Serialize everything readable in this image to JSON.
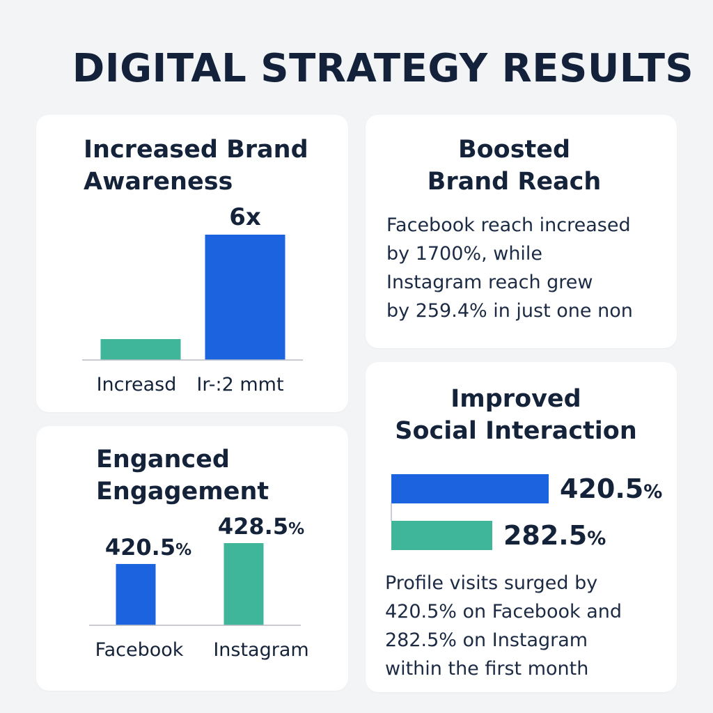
{
  "page": {
    "title": "DIGITAL STRATEGY RESULTS"
  },
  "colors": {
    "blue": "#1b63df",
    "teal": "#3fb69a",
    "axis": "#b8bcc4",
    "text": "#15233a"
  },
  "cards": {
    "awareness": {
      "title_lines": [
        "Increased Brand",
        "Awareness"
      ]
    },
    "reach": {
      "title_lines": [
        "Boosted",
        "Brand Reach"
      ],
      "body_lines": [
        "Facebook reach increased",
        "by 1700%, while",
        "Instagram reach grew",
        "by 259.4% in just one non"
      ]
    },
    "engagement": {
      "title_lines": [
        "Enganced",
        "Engagement"
      ]
    },
    "social": {
      "title_lines": [
        "Improved",
        "Social Interaction"
      ],
      "body_lines": [
        "Profile visits surged by",
        "420.5% on Facebook  and",
        "282.5% on Instagram",
        "within the first month"
      ]
    }
  },
  "chart_data": [
    {
      "id": "awareness",
      "type": "bar",
      "categories": [
        "Increasd",
        "Ir-:2 mmt"
      ],
      "values": [
        1,
        6
      ],
      "value_labels": [
        "",
        "6x"
      ],
      "colors": [
        "#3fb69a",
        "#1b63df"
      ]
    },
    {
      "id": "engagement",
      "type": "bar",
      "categories": [
        "Facebook",
        "Instagram"
      ],
      "values": [
        420.5,
        428.5
      ],
      "value_labels": [
        "420.5%",
        "428.5%"
      ],
      "colors": [
        "#1b63df",
        "#3fb69a"
      ]
    },
    {
      "id": "social",
      "type": "bar",
      "orientation": "horizontal",
      "categories": [
        "",
        ""
      ],
      "values": [
        420.5,
        282.5
      ],
      "value_labels": [
        "420.5%",
        "282.5%"
      ],
      "colors": [
        "#1b63df",
        "#3fb69a"
      ]
    }
  ]
}
